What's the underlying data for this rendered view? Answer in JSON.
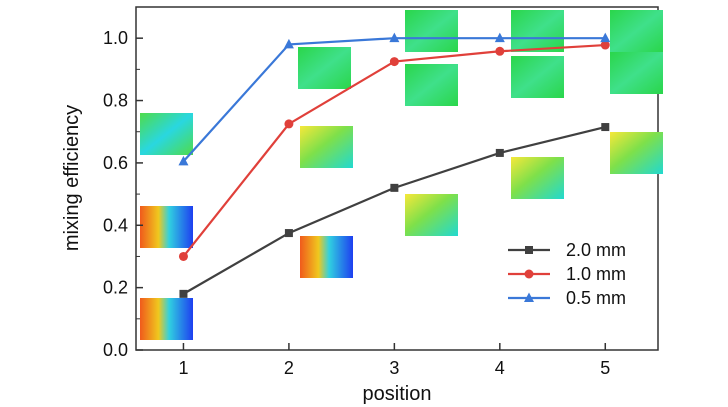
{
  "chart_data": {
    "type": "line",
    "title": "",
    "xlabel": "position",
    "ylabel": "mixing efficiency",
    "x": [
      1,
      2,
      3,
      4,
      5
    ],
    "x_tick_labels": [
      "1",
      "2",
      "3",
      "4",
      "5"
    ],
    "xlim": [
      0.55,
      5.5
    ],
    "ylim": [
      0.0,
      1.1
    ],
    "y_tick_labels": [
      "0.0",
      "0.2",
      "0.4",
      "0.6",
      "0.8",
      "1.0"
    ],
    "y_ticks": [
      0.0,
      0.2,
      0.4,
      0.6,
      0.8,
      1.0
    ],
    "grid": false,
    "legend_position": "lower-right",
    "series": [
      {
        "name": "2.0 mm",
        "color": "#404040",
        "marker": "square",
        "values": [
          0.18,
          0.375,
          0.52,
          0.632,
          0.715
        ]
      },
      {
        "name": "1.0 mm",
        "color": "#e0403a",
        "marker": "circle",
        "values": [
          0.3,
          0.725,
          0.925,
          0.958,
          0.978
        ]
      },
      {
        "name": "0.5 mm",
        "color": "#3a78d8",
        "marker": "triangle",
        "values": [
          0.605,
          0.98,
          1.0,
          1.0,
          1.0
        ]
      }
    ],
    "annotations": "small cross-section concentration maps (blue-green-yellow-red colour scale) shown next to each data point"
  }
}
